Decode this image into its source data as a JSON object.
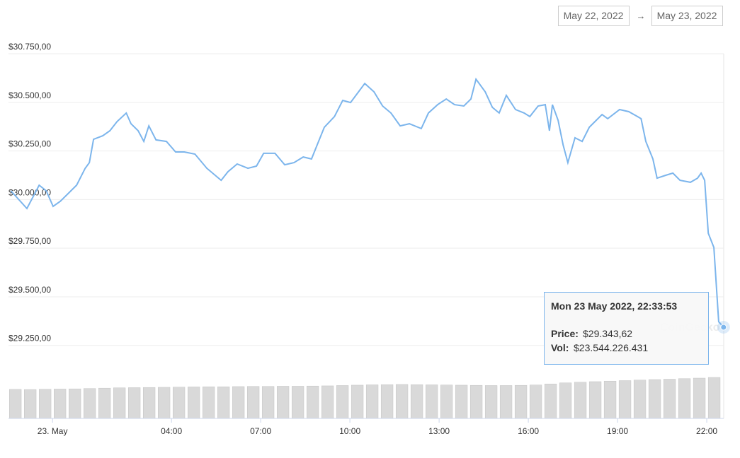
{
  "range": {
    "from": "May 22, 2022",
    "arrow": "→",
    "to": "May 23, 2022"
  },
  "chart_data": {
    "type": "line",
    "watermark": "CoinGecko",
    "xlim": [
      -1.48,
      22.57
    ],
    "xticks": [
      {
        "value": 0,
        "label": "23. May"
      },
      {
        "value": 4,
        "label": "04:00"
      },
      {
        "value": 7,
        "label": "07:00"
      },
      {
        "value": 10,
        "label": "10:00"
      },
      {
        "value": 13,
        "label": "13:00"
      },
      {
        "value": 16,
        "label": "16:00"
      },
      {
        "value": 19,
        "label": "19:00"
      },
      {
        "value": 22,
        "label": "22:00"
      }
    ],
    "ylim": [
      29100,
      30750
    ],
    "yticks": [
      {
        "value": 29250,
        "label": "$29.250,00"
      },
      {
        "value": 29500,
        "label": "$29.500,00"
      },
      {
        "value": 29750,
        "label": "$29.750,00"
      },
      {
        "value": 30000,
        "label": "$30.000,00"
      },
      {
        "value": 30250,
        "label": "$30.250,00"
      },
      {
        "value": 30500,
        "label": "$30.500,00"
      },
      {
        "value": 30750,
        "label": "$30.750,00"
      }
    ],
    "grid": true,
    "series": [
      {
        "color": "#7cb5ec",
        "x": [
          -1.4,
          -0.86,
          -0.45,
          -0.21,
          0.02,
          0.26,
          0.5,
          0.81,
          1.1,
          1.24,
          1.38,
          1.69,
          1.93,
          2.17,
          2.48,
          2.64,
          2.88,
          3.07,
          3.24,
          3.48,
          3.83,
          4.14,
          4.43,
          4.79,
          5.19,
          5.67,
          5.9,
          6.21,
          6.57,
          6.86,
          7.1,
          7.48,
          7.81,
          8.12,
          8.43,
          8.71,
          8.9,
          9.14,
          9.48,
          9.76,
          10.02,
          10.5,
          10.81,
          11.1,
          11.38,
          11.69,
          12.0,
          12.4,
          12.64,
          12.95,
          13.24,
          13.52,
          13.83,
          14.07,
          14.24,
          14.55,
          14.79,
          15.02,
          15.26,
          15.57,
          15.86,
          16.05,
          16.33,
          16.57,
          16.71,
          16.81,
          17.0,
          17.17,
          17.33,
          17.57,
          17.81,
          18.05,
          18.24,
          18.48,
          18.67,
          19.07,
          19.38,
          19.67,
          19.79,
          19.95,
          20.19,
          20.33,
          20.62,
          20.86,
          21.1,
          21.45,
          21.69,
          21.81,
          21.93,
          22.05,
          22.24,
          22.4,
          22.565
        ],
        "values": [
          30045,
          29954,
          30074,
          30045,
          29965,
          29991,
          30027,
          30074,
          30161,
          30190,
          30310,
          30328,
          30354,
          30401,
          30445,
          30390,
          30354,
          30299,
          30379,
          30307,
          30299,
          30245,
          30245,
          30234,
          30161,
          30099,
          30143,
          30183,
          30161,
          30172,
          30238,
          30238,
          30179,
          30190,
          30219,
          30209,
          30281,
          30372,
          30427,
          30510,
          30499,
          30597,
          30554,
          30481,
          30445,
          30379,
          30390,
          30365,
          30445,
          30488,
          30517,
          30488,
          30481,
          30517,
          30619,
          30554,
          30474,
          30445,
          30536,
          30463,
          30445,
          30427,
          30481,
          30488,
          30354,
          30488,
          30408,
          30281,
          30190,
          30318,
          30299,
          30372,
          30401,
          30437,
          30416,
          30463,
          30452,
          30427,
          30416,
          30299,
          30209,
          30110,
          30125,
          30136,
          30099,
          30089,
          30110,
          30136,
          30099,
          29827,
          29754,
          29372,
          29343.62
        ]
      },
      {
        "type": "bar",
        "color": "#d9d9d9",
        "x": [
          -1.25,
          -0.75,
          -0.25,
          0.25,
          0.75,
          1.25,
          1.75,
          2.25,
          2.75,
          3.25,
          3.75,
          4.25,
          4.75,
          5.25,
          5.75,
          6.25,
          6.75,
          7.25,
          7.75,
          8.25,
          8.75,
          9.25,
          9.75,
          10.25,
          10.75,
          11.25,
          11.75,
          12.25,
          12.75,
          13.25,
          13.75,
          14.25,
          14.75,
          15.25,
          15.75,
          16.25,
          16.75,
          17.25,
          17.75,
          18.25,
          18.75,
          19.25,
          19.75,
          20.25,
          20.75,
          21.25,
          21.75,
          22.25
        ],
        "values": [
          16500000000,
          16400000000,
          16600000000,
          16700000000,
          16800000000,
          17000000000,
          17200000000,
          17400000000,
          17500000000,
          17600000000,
          17700000000,
          17800000000,
          17900000000,
          18000000000,
          18000000000,
          18100000000,
          18200000000,
          18200000000,
          18300000000,
          18300000000,
          18400000000,
          18500000000,
          18700000000,
          18900000000,
          19100000000,
          19200000000,
          19300000000,
          19200000000,
          19100000000,
          19000000000,
          18900000000,
          18800000000,
          18700000000,
          18700000000,
          18800000000,
          19000000000,
          19600000000,
          20200000000,
          20600000000,
          20900000000,
          21200000000,
          21500000000,
          21800000000,
          22100000000,
          22300000000,
          22600000000,
          22900000000,
          23300000000
        ]
      }
    ],
    "tooltip": {
      "title": "Mon 23 May 2022, 22:33:53",
      "price_label": "Price:",
      "price": "$29.343,62",
      "vol_label": "Vol:",
      "vol": "$23.544.226.431"
    }
  }
}
